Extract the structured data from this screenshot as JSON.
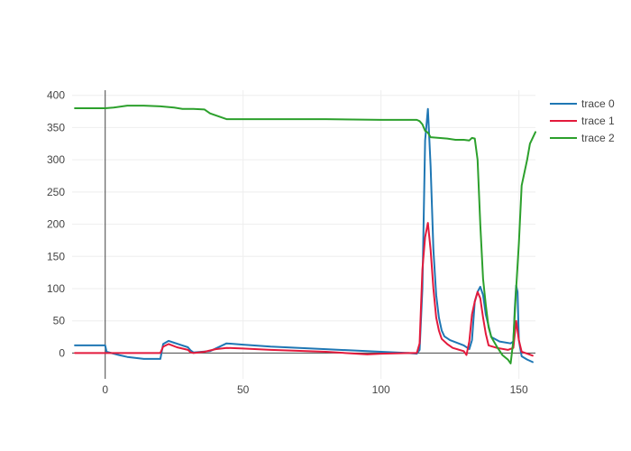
{
  "chart_data": {
    "type": "line",
    "title": "",
    "xlabel": "",
    "ylabel": "",
    "xlim": [
      -12,
      156
    ],
    "ylim": [
      -40,
      408
    ],
    "x_ticks": [
      0,
      50,
      100,
      150
    ],
    "y_ticks": [
      0,
      50,
      100,
      150,
      200,
      250,
      300,
      350,
      400
    ],
    "grid": true,
    "zero_lines": true,
    "legend_position": "top-right",
    "series": [
      {
        "name": "trace 0",
        "color": "#1f77b4",
        "points": [
          [
            -11,
            12
          ],
          [
            0,
            12
          ],
          [
            0.5,
            2
          ],
          [
            5,
            -3
          ],
          [
            8,
            -6
          ],
          [
            14,
            -9
          ],
          [
            20,
            -9
          ],
          [
            21,
            14
          ],
          [
            23,
            19
          ],
          [
            25,
            16
          ],
          [
            30,
            9
          ],
          [
            31,
            4
          ],
          [
            32,
            1
          ],
          [
            38,
            3
          ],
          [
            44,
            15
          ],
          [
            50,
            13
          ],
          [
            60,
            10
          ],
          [
            80,
            6
          ],
          [
            100,
            2
          ],
          [
            110,
            0
          ],
          [
            113,
            -1
          ],
          [
            114,
            5
          ],
          [
            115,
            100
          ],
          [
            116,
            330
          ],
          [
            117,
            379
          ],
          [
            118,
            290
          ],
          [
            119,
            160
          ],
          [
            120,
            90
          ],
          [
            121,
            55
          ],
          [
            122,
            35
          ],
          [
            123,
            26
          ],
          [
            125,
            20
          ],
          [
            130,
            12
          ],
          [
            132,
            6
          ],
          [
            133,
            20
          ],
          [
            134,
            80
          ],
          [
            135,
            95
          ],
          [
            136,
            103
          ],
          [
            137,
            90
          ],
          [
            138,
            60
          ],
          [
            140,
            25
          ],
          [
            143,
            18
          ],
          [
            147,
            15
          ],
          [
            148,
            18
          ],
          [
            148.5,
            70
          ],
          [
            149,
            105
          ],
          [
            149.5,
            95
          ],
          [
            150,
            20
          ],
          [
            151,
            -5
          ],
          [
            153,
            -10
          ],
          [
            155,
            -14
          ]
        ]
      },
      {
        "name": "trace 1",
        "color": "#e31a3c",
        "points": [
          [
            -11,
            0
          ],
          [
            0,
            0
          ],
          [
            10,
            0
          ],
          [
            20,
            0
          ],
          [
            21,
            10
          ],
          [
            23,
            14
          ],
          [
            26,
            9
          ],
          [
            30,
            5
          ],
          [
            31,
            1
          ],
          [
            32,
            0
          ],
          [
            36,
            2
          ],
          [
            40,
            6
          ],
          [
            44,
            8
          ],
          [
            50,
            7
          ],
          [
            60,
            5
          ],
          [
            80,
            2
          ],
          [
            95,
            -2
          ],
          [
            100,
            -1
          ],
          [
            110,
            0
          ],
          [
            113,
            0
          ],
          [
            114,
            15
          ],
          [
            115,
            130
          ],
          [
            116,
            180
          ],
          [
            117,
            202
          ],
          [
            118,
            160
          ],
          [
            119,
            100
          ],
          [
            120,
            55
          ],
          [
            121,
            35
          ],
          [
            122,
            22
          ],
          [
            124,
            14
          ],
          [
            126,
            8
          ],
          [
            130,
            3
          ],
          [
            131,
            -3
          ],
          [
            132,
            18
          ],
          [
            133,
            60
          ],
          [
            134,
            80
          ],
          [
            135,
            95
          ],
          [
            136,
            85
          ],
          [
            137,
            55
          ],
          [
            138,
            30
          ],
          [
            139,
            12
          ],
          [
            142,
            8
          ],
          [
            146,
            5
          ],
          [
            148,
            8
          ],
          [
            149,
            50
          ],
          [
            150,
            20
          ],
          [
            151,
            2
          ],
          [
            153,
            -1
          ],
          [
            155,
            -4
          ]
        ]
      },
      {
        "name": "trace 2",
        "color": "#2ca02c",
        "points": [
          [
            -11,
            380
          ],
          [
            0,
            380
          ],
          [
            3,
            381
          ],
          [
            8,
            384
          ],
          [
            14,
            384
          ],
          [
            20,
            383
          ],
          [
            25,
            381
          ],
          [
            28,
            379
          ],
          [
            32,
            379
          ],
          [
            36,
            378
          ],
          [
            38,
            372
          ],
          [
            44,
            363
          ],
          [
            60,
            363
          ],
          [
            80,
            363
          ],
          [
            100,
            362
          ],
          [
            113,
            362
          ],
          [
            114,
            360
          ],
          [
            115,
            355
          ],
          [
            116,
            345
          ],
          [
            117,
            342
          ],
          [
            118,
            335
          ],
          [
            121,
            334
          ],
          [
            124,
            333
          ],
          [
            127,
            331
          ],
          [
            130,
            331
          ],
          [
            132,
            330
          ],
          [
            133,
            334
          ],
          [
            134,
            333
          ],
          [
            135,
            300
          ],
          [
            136,
            200
          ],
          [
            137,
            115
          ],
          [
            138,
            75
          ],
          [
            139,
            40
          ],
          [
            140,
            25
          ],
          [
            142,
            10
          ],
          [
            144,
            -3
          ],
          [
            146,
            -10
          ],
          [
            147,
            -16
          ],
          [
            148,
            20
          ],
          [
            149,
            100
          ],
          [
            150,
            170
          ],
          [
            151,
            260
          ],
          [
            153,
            300
          ],
          [
            154,
            325
          ],
          [
            156,
            343
          ]
        ]
      }
    ]
  }
}
